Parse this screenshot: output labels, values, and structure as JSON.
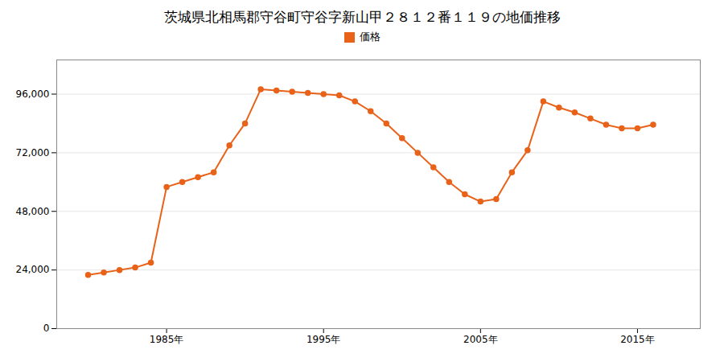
{
  "chart_data": {
    "type": "line",
    "title": "茨城県北相馬郡守谷町守谷字新山甲２８１２番１１９の地価推移",
    "x": [
      1980,
      1981,
      1982,
      1983,
      1984,
      1985,
      1986,
      1987,
      1988,
      1989,
      1990,
      1991,
      1992,
      1993,
      1994,
      1995,
      1996,
      1997,
      1998,
      1999,
      2000,
      2001,
      2002,
      2003,
      2004,
      2005,
      2006,
      2007,
      2008,
      2009,
      2010,
      2011,
      2012,
      2013,
      2014,
      2015,
      2016
    ],
    "series": [
      {
        "name": "価格",
        "color": "#E8621A",
        "marker": "circle",
        "values": [
          22000,
          23000,
          24000,
          25000,
          27000,
          58000,
          60000,
          62000,
          64000,
          75000,
          84000,
          98000,
          97500,
          97000,
          96500,
          96000,
          95500,
          93000,
          89000,
          84000,
          78000,
          72000,
          66000,
          60000,
          55000,
          52000,
          53000,
          64000,
          73000,
          93000,
          90500,
          88500,
          86000,
          83500,
          82000,
          82000,
          83500
        ]
      }
    ],
    "xlim": [
      1978,
      2019
    ],
    "xticks": [
      {
        "value": 1985,
        "label": "1985年"
      },
      {
        "value": 1995,
        "label": "1995年"
      },
      {
        "value": 2005,
        "label": "2005年"
      },
      {
        "value": 2015,
        "label": "2015年"
      }
    ],
    "ylim": [
      0,
      110000
    ],
    "yticks": [
      0,
      {
        "value": 24000,
        "label": "24,000"
      },
      {
        "value": 48000,
        "label": "48,000"
      },
      {
        "value": 72000,
        "label": "72,000"
      },
      {
        "value": 96000,
        "label": "96,000"
      }
    ],
    "grid": "y",
    "legend": "top"
  }
}
